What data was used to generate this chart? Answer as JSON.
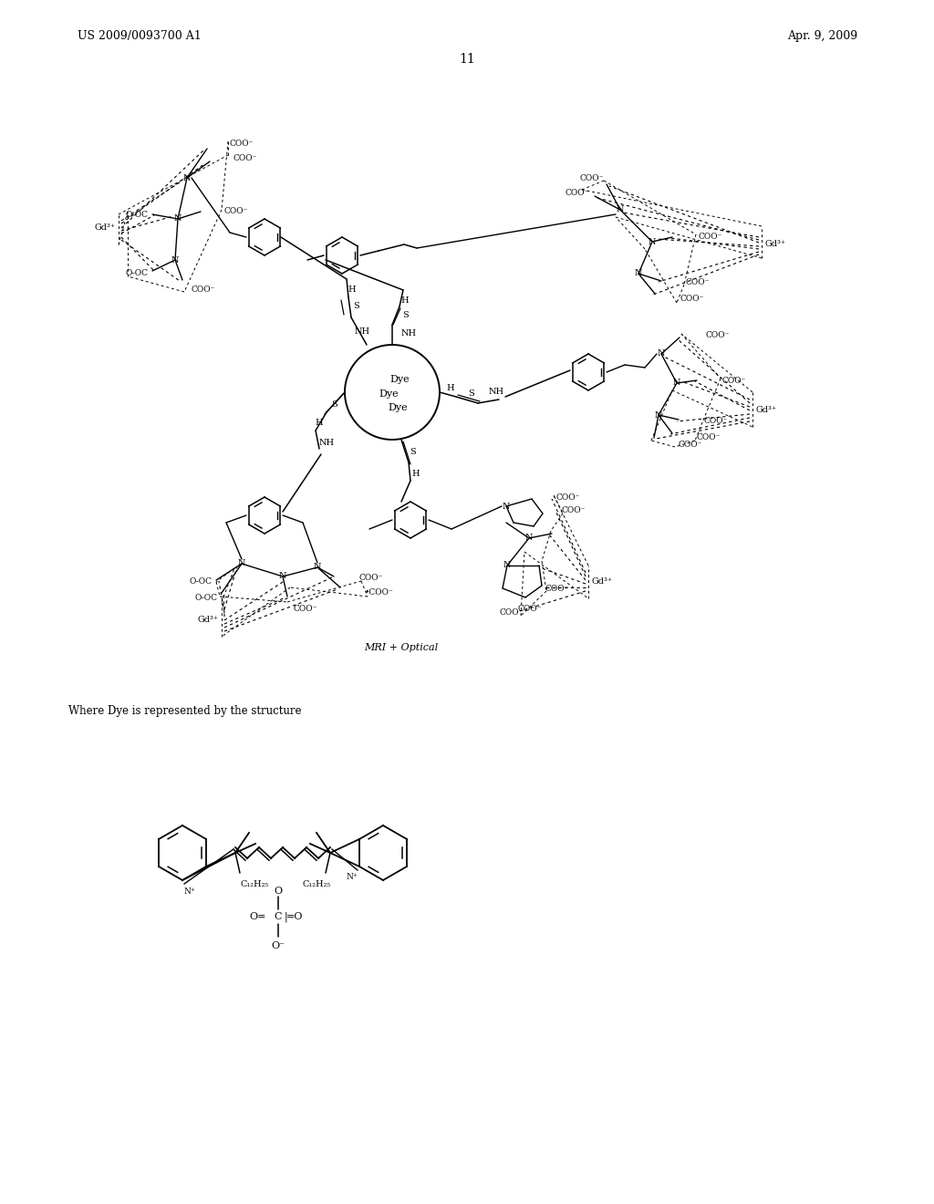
{
  "title_left": "US 2009/0093700 A1",
  "title_right": "Apr. 9, 2009",
  "page_number": "11",
  "caption": "MRI + Optical",
  "dye_caption": "Where Dye is represented by the structure",
  "bg_color": "#ffffff",
  "text_color": "#000000"
}
